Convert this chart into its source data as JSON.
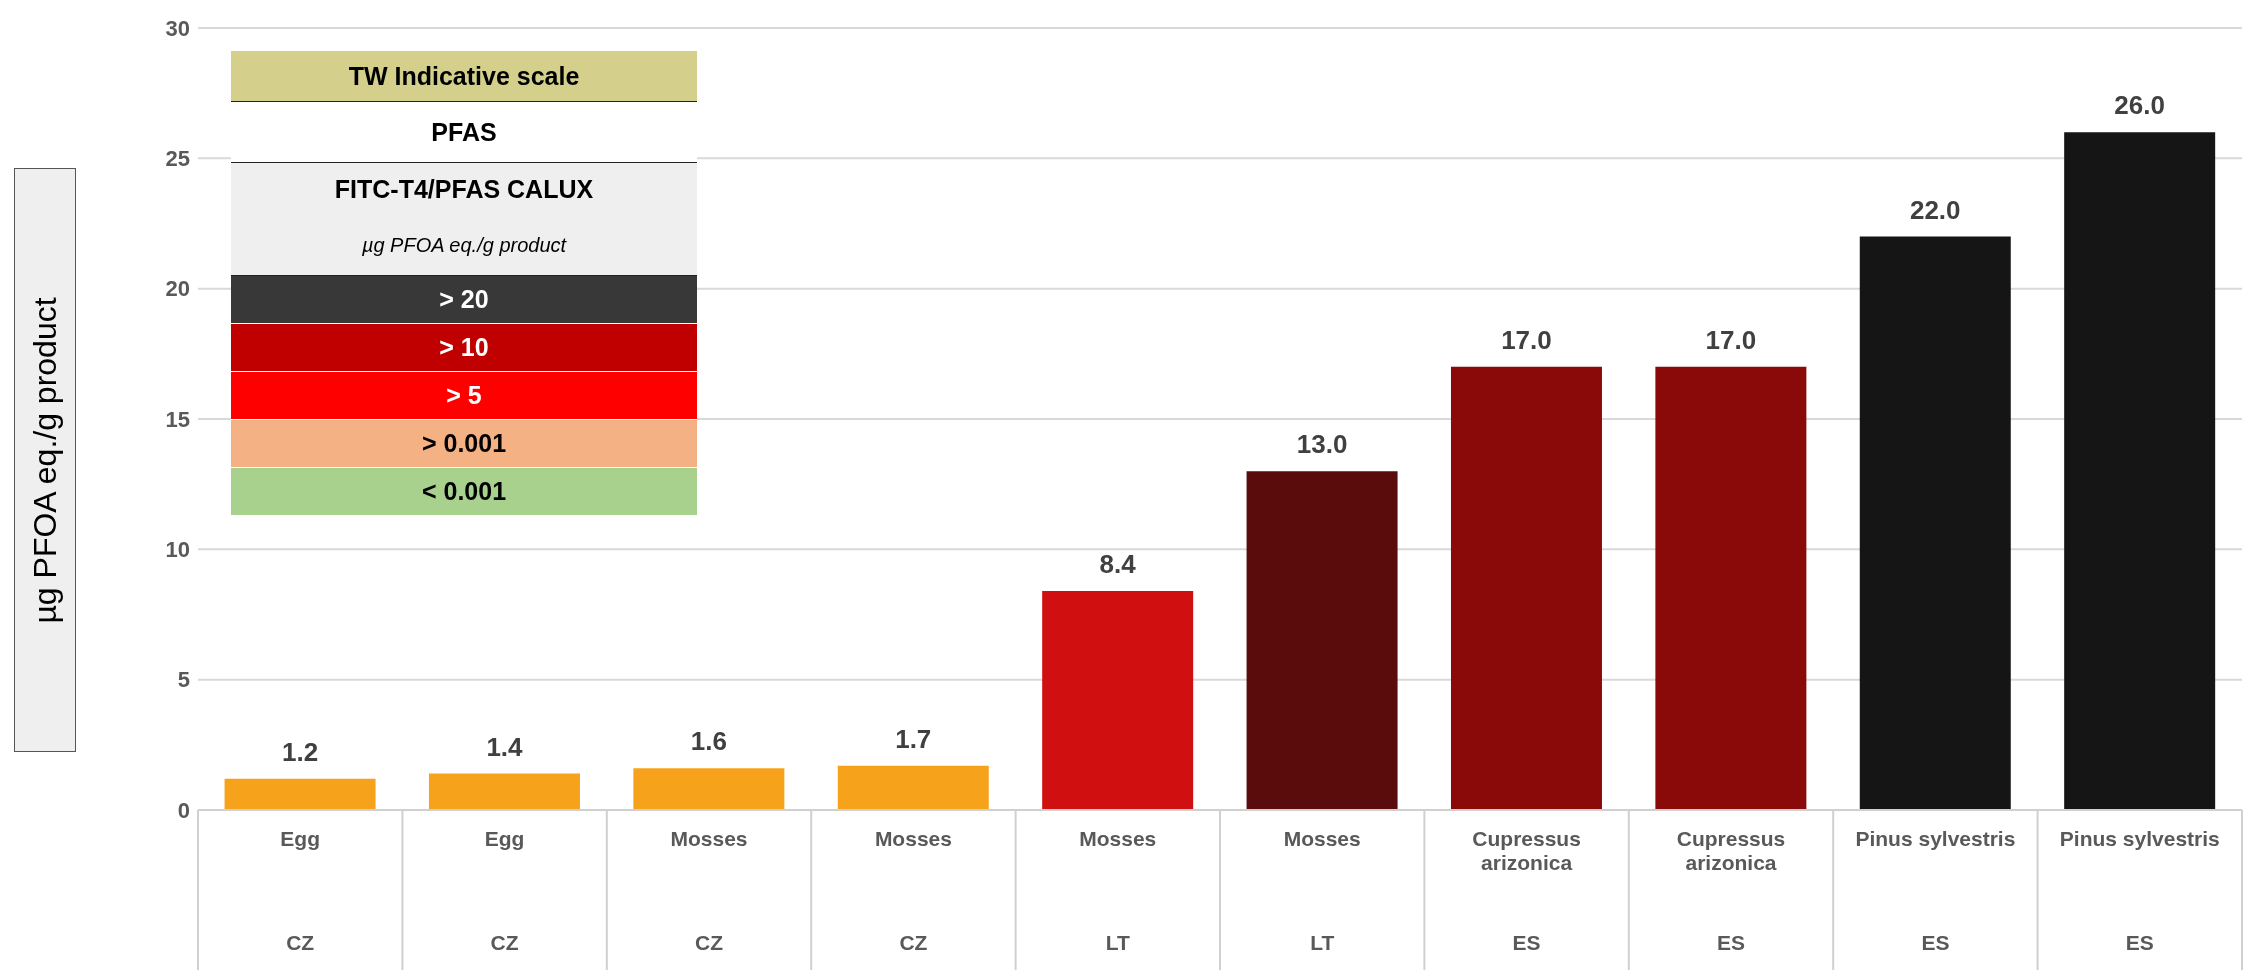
{
  "chart_data": [
    {
      "type": "bar",
      "ylabel": "µg PFOA eq./g product",
      "categories": [
        "Egg\nCZ",
        "Egg\nCZ",
        "Mosses\nCZ",
        "Mosses\nCZ",
        "Mosses\nLT",
        "Mosses\nLT",
        "Cupressus\narizonica\nES",
        "Cupressus\narizonica\nES",
        "Pinus sylvestris\nES",
        "Pinus sylvestris\nES"
      ],
      "values": [
        1.2,
        1.4,
        1.6,
        1.7,
        8.4,
        13,
        17,
        17,
        22,
        26
      ],
      "value_labels": [
        "1.2",
        "1.4",
        "1.6",
        "1.7",
        "8.4",
        "13.0",
        "17.0",
        "17.0",
        "22.0",
        "26.0"
      ],
      "colors": [
        "#f7a21b",
        "#f7a21b",
        "#f7a21b",
        "#f7a21b",
        "#d01010",
        "#5a0c0c",
        "#8a0a0a",
        "#8a0a0a",
        "#151515",
        "#151515"
      ],
      "ylim": [
        0,
        30
      ],
      "yticks": [
        0,
        5,
        10,
        15,
        20,
        25,
        30
      ],
      "grid": "y"
    },
    {
      "type": "other",
      "title": "TW Indicative scale",
      "subtitle": "PFAS",
      "annotations": [
        "FITC-T4/PFAS CALUX",
        "µg PFOA eq./g product"
      ],
      "categories": [
        "> 20",
        "> 10",
        "> 5",
        "> 0.001",
        "< 0.001"
      ],
      "colors": [
        "#383838",
        "#c00000",
        "#ff0000",
        "#f4b183",
        "#a9d18e"
      ]
    }
  ]
}
